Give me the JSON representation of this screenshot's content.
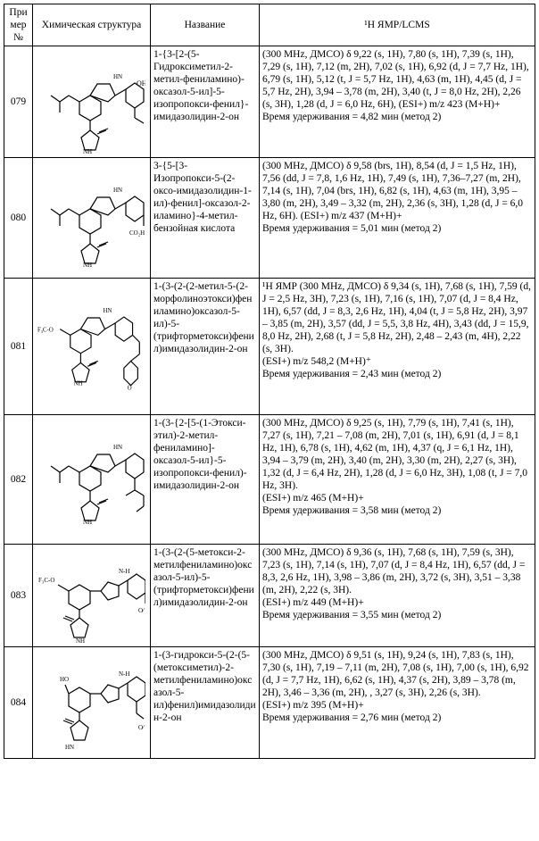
{
  "headers": {
    "num": "При\nмер\n№",
    "struct": "Химическая структура",
    "name": "Название",
    "nmr": "¹H ЯМР/LCMS"
  },
  "rows": [
    {
      "num": "079",
      "name": "1-{3-[2-(5-Гидроксиметил-2-метил-фениламино)-оксазол-5-ил]-5-изопропокси-фенил}-имидазолидин-2-он",
      "nmr": "(300 MHz, ДМСО) δ 9,22 (s, 1H), 7,80 (s, 1H), 7,39 (s, 1H), 7,29 (s, 1H), 7,12 (m, 2H), 7,02 (s, 1H), 6,92 (d, J = 7,7 Hz, 1H), 6,79 (s, 1H), 5,12 (t, J = 5,7 Hz, 1H), 4,63 (m, 1H), 4,45 (d, J = 5,7 Hz, 2H), 3,94 – 3,78 (m, 2H), 3,40 (t, J = 8,0 Hz, 2H), 2,26 (s, 3H), 1,28 (d, J = 6,0 Hz, 6H), (ESI+) m/z 423 (M+H)+\nВремя удерживания = 4,82 мин (метод 2)"
    },
    {
      "num": "080",
      "name": "3-{5-[3-Изопропокси-5-(2-оксо-имидазолидин-1-ил)-фенил]-оксазол-2-иламино}-4-метил-бензойная кислота",
      "nmr": "(300 MHz, ДМСО) δ 9,58 (brs, 1H), 8,54 (d, J = 1,5 Hz, 1H), 7,56 (dd, J = 7,8, 1,6 Hz, 1H), 7,49 (s, 1H), 7,36–7,27 (m, 2H), 7,14 (s, 1H), 7,04 (brs, 1H), 6,82 (s, 1H), 4,63 (m, 1H), 3,95 – 3,80 (m, 2H), 3,49 – 3,32 (m, 2H), 2,36 (s, 3H), 1,28 (d, J = 6,0 Hz, 6H). (ESI+) m/z 437 (M+H)+\nВремя удерживания = 5,01 мин (метод 2)"
    },
    {
      "num": "081",
      "name": "1-(3-(2-(2-метил-5-(2-морфолиноэтокси)фениламино)оксазол-5-ил)-5-(трифторметокси)фенил)имидазолидин-2-он",
      "nmr": "¹H ЯМР (300 MHz, ДМСО) δ 9,34 (s, 1H), 7,68 (s, 1H), 7,59 (d, J = 2,5 Hz, 3H), 7,23 (s, 1H), 7,16 (s, 1H), 7,07 (d, J = 8,4 Hz, 1H), 6,57 (dd, J = 8,3, 2,6 Hz, 1H), 4,04 (t, J = 5,8 Hz, 2H), 3,97 – 3,85 (m, 2H), 3,57 (dd, J = 5,5, 3,8 Hz, 4H), 3,43 (dd, J = 15,9, 8,0 Hz, 2H), 2,68 (t, J = 5,8 Hz, 2H), 2,48 – 2,43 (m, 4H), 2,22 (s, 3H).\n(ESI+) m/z 548,2 (M+H)⁺\nВремя удерживания = 2,43 мин (метод 2)"
    },
    {
      "num": "082",
      "name": "1-(3-{2-[5-(1-Этокси-этил)-2-метил-фениламино]-оксазол-5-ил}-5-изопропокси-фенил)-имидазолидин-2-он",
      "nmr": "(300 MHz, ДМСО) δ 9,25 (s, 1H), 7,79 (s, 1H), 7,41 (s, 1H), 7,27 (s, 1H), 7,21 – 7,08 (m, 2H), 7,01 (s, 1H), 6,91 (d, J = 8,1 Hz, 1H), 6,78 (s, 1H), 4,62 (m, 1H), 4,37 (q, J = 6,1 Hz, 1H), 3,94 – 3,79 (m, 2H), 3,40 (m, 2H), 3,30 (m, 2H), 2,27 (s, 3H), 1,32 (d, J = 6,4 Hz, 2H), 1,28 (d, J = 6,0 Hz, 3H), 1,08 (t, J = 7,0 Hz, 3H).\n(ESI+) m/z 465 (M+H)+\nВремя удерживания = 3,58 мин (метод 2)"
    },
    {
      "num": "083",
      "name": "1-(3-(2-(5-метокси-2-метилфениламино)оксазол-5-ил)-5-(трифторметокси)фенил)имидазолидин-2-он",
      "nmr": "(300 MHz, ДМСО) δ 9,36 (s, 1H), 7,68 (s, 1H), 7,59 (s, 3H), 7,23 (s, 1H), 7,14 (s, 1H), 7,07 (d, J = 8,4 Hz, 1H), 6,57 (dd, J = 8,3, 2,6 Hz, 1H), 3,98 – 3,86 (m, 2H), 3,72 (s, 3H), 3,51 – 3,38 (m, 2H), 2,22 (s, 3H).\n(ESI+) m/z 449 (M+H)+\nВремя удерживания = 3,55 мин (метод 2)"
    },
    {
      "num": "084",
      "name": "1-(3-гидрокси-5-(2-(5-(метоксиметил)-2-метилфениламино)оксазол-5-ил)фенил)имидазолидин-2-он",
      "nmr": "(300 MHz, ДМСО) δ 9,51 (s, 1H), 9,24 (s, 1H), 7,83 (s, 1H), 7,30 (s, 1H), 7,19 – 7,11 (m, 2H), 7,08 (s, 1H), 7,00 (s, 1H), 6,92 (d, J = 7,7 Hz, 1H), 6,62 (s, 1H), 4,37 (s, 2H), 3,89 – 3,78 (m, 2H), 3,46 – 3,36 (m, 2H), , 3,27 (s, 3H), 2,26 (s, 3H).\n(ESI+) m/z 395 (M+H)+\nВремя удерживания = 2,76 мин (метод 2)"
    }
  ]
}
